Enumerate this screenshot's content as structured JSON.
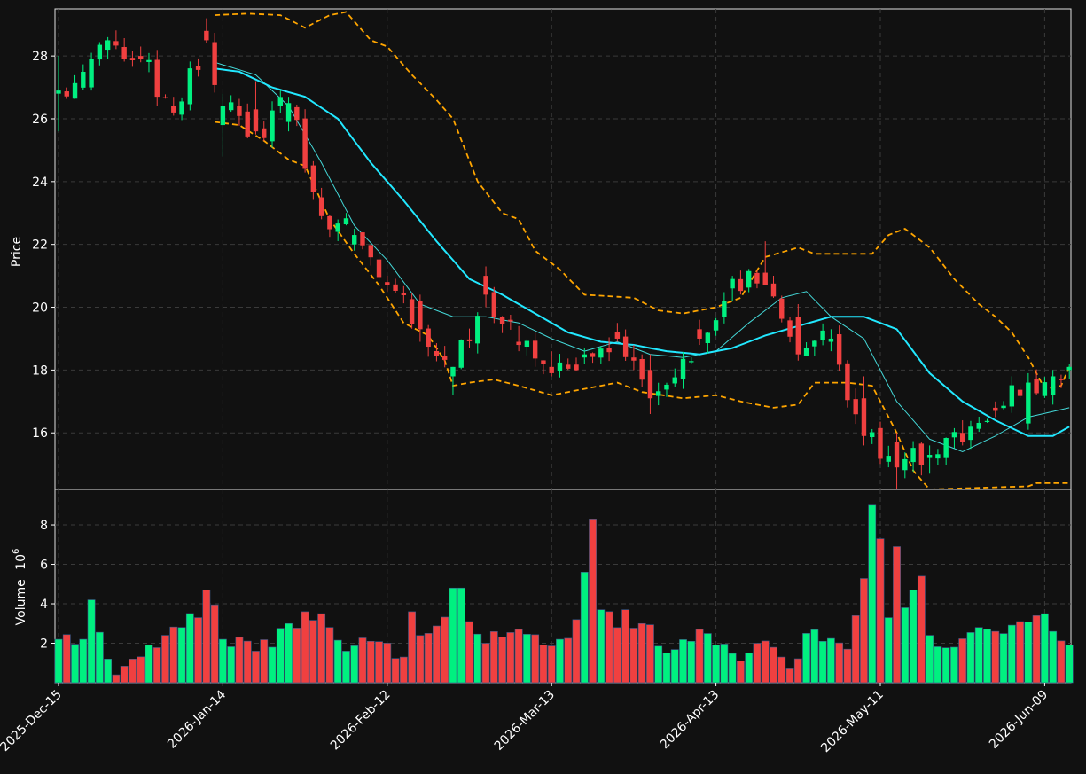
{
  "chart_data": {
    "type": "candlestick",
    "price_panel": {
      "ylabel": "Price",
      "ylim": [
        14.2,
        29.5
      ],
      "yticks": [
        16,
        18,
        20,
        22,
        24,
        26,
        28
      ]
    },
    "volume_panel": {
      "ylabel": "Volume",
      "exponent_label": "10^6",
      "ylim": [
        0,
        9.8
      ],
      "yticks": [
        2,
        4,
        6,
        8
      ]
    },
    "x_tick_labels": [
      "2025-Dec-15",
      "2026-Jan-14",
      "2026-Feb-12",
      "2026-Mar-13",
      "2026-Apr-13",
      "2026-May-11",
      "2026-Jun-09"
    ],
    "x_tick_index": [
      0,
      20,
      40,
      60,
      80,
      100,
      120
    ],
    "num_bars": 124,
    "ohlc_key": [
      [
        0,
        26.8,
        28.0,
        25.6,
        26.9
      ],
      [
        4,
        27.0,
        28.1,
        26.9,
        27.9
      ],
      [
        6,
        28.2,
        28.6,
        27.9,
        28.5
      ],
      [
        10,
        28.0,
        28.3,
        27.8,
        27.9
      ],
      [
        14,
        26.4,
        26.7,
        26.1,
        26.2
      ],
      [
        18,
        28.8,
        29.2,
        28.4,
        28.5
      ],
      [
        20,
        25.8,
        26.8,
        24.8,
        26.4
      ],
      [
        24,
        26.3,
        27.2,
        25.5,
        25.6
      ],
      [
        28,
        25.9,
        26.7,
        25.6,
        26.5
      ],
      [
        32,
        23.5,
        23.8,
        22.8,
        22.9
      ],
      [
        36,
        22.0,
        22.5,
        21.8,
        22.3
      ],
      [
        40,
        20.8,
        21.0,
        20.5,
        20.7
      ],
      [
        44,
        20.2,
        20.4,
        18.9,
        19.3
      ],
      [
        48,
        17.8,
        18.1,
        17.2,
        18.1
      ],
      [
        52,
        21.0,
        21.3,
        20.0,
        20.4
      ],
      [
        56,
        18.9,
        19.4,
        18.6,
        18.8
      ],
      [
        60,
        18.1,
        18.6,
        17.8,
        17.9
      ],
      [
        64,
        18.4,
        18.7,
        18.2,
        18.5
      ],
      [
        68,
        19.2,
        19.5,
        18.9,
        19.0
      ],
      [
        70,
        18.4,
        18.8,
        18.0,
        18.3
      ],
      [
        72,
        18.0,
        18.5,
        16.6,
        17.1
      ],
      [
        78,
        19.3,
        19.6,
        18.8,
        19.0
      ],
      [
        82,
        20.6,
        21.0,
        20.2,
        20.9
      ],
      [
        86,
        21.1,
        22.1,
        20.9,
        20.7
      ],
      [
        90,
        19.7,
        20.1,
        18.3,
        18.5
      ],
      [
        94,
        18.9,
        19.3,
        18.6,
        19.0
      ],
      [
        98,
        17.1,
        17.8,
        15.6,
        15.9
      ],
      [
        102,
        15.7,
        16.0,
        14.2,
        14.9
      ],
      [
        106,
        15.2,
        15.6,
        14.7,
        15.3
      ],
      [
        110,
        16.0,
        16.4,
        15.6,
        15.7
      ],
      [
        114,
        16.8,
        17.0,
        16.5,
        16.7
      ],
      [
        118,
        16.3,
        17.9,
        16.1,
        17.6
      ],
      [
        121,
        17.2,
        18.0,
        16.9,
        17.8
      ],
      [
        123,
        18.0,
        18.2,
        17.7,
        18.1
      ]
    ],
    "sma_fast_key": [
      [
        19,
        27.8
      ],
      [
        24,
        27.4
      ],
      [
        28,
        26.4
      ],
      [
        32,
        24.6
      ],
      [
        36,
        22.6
      ],
      [
        40,
        21.5
      ],
      [
        44,
        20.1
      ],
      [
        48,
        19.7
      ],
      [
        52,
        19.7
      ],
      [
        56,
        19.5
      ],
      [
        60,
        19.0
      ],
      [
        64,
        18.6
      ],
      [
        68,
        18.9
      ],
      [
        72,
        18.5
      ],
      [
        76,
        18.4
      ],
      [
        80,
        18.6
      ],
      [
        84,
        19.5
      ],
      [
        88,
        20.3
      ],
      [
        91,
        20.5
      ],
      [
        94,
        19.7
      ],
      [
        98,
        19.0
      ],
      [
        102,
        17.0
      ],
      [
        106,
        15.8
      ],
      [
        110,
        15.4
      ],
      [
        114,
        15.9
      ],
      [
        118,
        16.5
      ],
      [
        123,
        16.8
      ]
    ],
    "sma_slow_key": [
      [
        19,
        27.6
      ],
      [
        22,
        27.5
      ],
      [
        26,
        27.0
      ],
      [
        30,
        26.7
      ],
      [
        34,
        26.0
      ],
      [
        38,
        24.6
      ],
      [
        42,
        23.4
      ],
      [
        46,
        22.1
      ],
      [
        50,
        20.9
      ],
      [
        54,
        20.4
      ],
      [
        58,
        19.8
      ],
      [
        62,
        19.2
      ],
      [
        66,
        18.9
      ],
      [
        70,
        18.8
      ],
      [
        74,
        18.6
      ],
      [
        78,
        18.5
      ],
      [
        82,
        18.7
      ],
      [
        86,
        19.1
      ],
      [
        90,
        19.4
      ],
      [
        94,
        19.7
      ],
      [
        98,
        19.7
      ],
      [
        102,
        19.3
      ],
      [
        106,
        17.9
      ],
      [
        110,
        17.0
      ],
      [
        114,
        16.4
      ],
      [
        118,
        15.9
      ],
      [
        121,
        15.9
      ],
      [
        123,
        16.2
      ]
    ],
    "bb_upper_key": [
      [
        19,
        29.3
      ],
      [
        23,
        29.35
      ],
      [
        27,
        29.3
      ],
      [
        30,
        28.9
      ],
      [
        33,
        29.3
      ],
      [
        35,
        29.4
      ],
      [
        38,
        28.5
      ],
      [
        40,
        28.3
      ],
      [
        43,
        27.4
      ],
      [
        46,
        26.6
      ],
      [
        48,
        26.0
      ],
      [
        51,
        24.0
      ],
      [
        54,
        23.0
      ],
      [
        56,
        22.8
      ],
      [
        58,
        21.8
      ],
      [
        61,
        21.2
      ],
      [
        64,
        20.4
      ],
      [
        70,
        20.3
      ],
      [
        73,
        19.9
      ],
      [
        76,
        19.8
      ],
      [
        80,
        20.0
      ],
      [
        83,
        20.3
      ],
      [
        86,
        21.6
      ],
      [
        90,
        21.9
      ],
      [
        92,
        21.7
      ],
      [
        96,
        21.7
      ],
      [
        99,
        21.7
      ],
      [
        101,
        22.3
      ],
      [
        103,
        22.5
      ],
      [
        106,
        21.9
      ],
      [
        109,
        20.9
      ],
      [
        112,
        20.1
      ],
      [
        114,
        19.7
      ],
      [
        116,
        19.2
      ],
      [
        118,
        18.4
      ],
      [
        120,
        17.4
      ],
      [
        122,
        17.5
      ],
      [
        123,
        18.1
      ]
    ],
    "bb_lower_key": [
      [
        19,
        25.9
      ],
      [
        22,
        25.8
      ],
      [
        25,
        25.3
      ],
      [
        28,
        24.7
      ],
      [
        30,
        24.5
      ],
      [
        33,
        22.8
      ],
      [
        36,
        21.7
      ],
      [
        39,
        20.7
      ],
      [
        42,
        19.5
      ],
      [
        45,
        19.1
      ],
      [
        47,
        18.3
      ],
      [
        48,
        17.5
      ],
      [
        50,
        17.6
      ],
      [
        53,
        17.7
      ],
      [
        56,
        17.5
      ],
      [
        60,
        17.2
      ],
      [
        64,
        17.4
      ],
      [
        68,
        17.6
      ],
      [
        71,
        17.3
      ],
      [
        76,
        17.1
      ],
      [
        80,
        17.2
      ],
      [
        83,
        17.0
      ],
      [
        87,
        16.8
      ],
      [
        90,
        16.9
      ],
      [
        92,
        17.6
      ],
      [
        96,
        17.6
      ],
      [
        99,
        17.5
      ],
      [
        102,
        16.0
      ],
      [
        104,
        14.8
      ],
      [
        106,
        14.2
      ],
      [
        118,
        14.3
      ],
      [
        119,
        14.4
      ],
      [
        123,
        14.4
      ]
    ],
    "volume_key": [
      [
        0,
        2.2
      ],
      [
        3,
        2.2
      ],
      [
        4,
        4.2
      ],
      [
        6,
        1.2
      ],
      [
        7,
        0.4
      ],
      [
        9,
        1.2
      ],
      [
        13,
        2.4
      ],
      [
        15,
        2.8
      ],
      [
        17,
        3.3
      ],
      [
        18,
        4.7
      ],
      [
        20,
        2.2
      ],
      [
        22,
        2.3
      ],
      [
        26,
        1.8
      ],
      [
        28,
        3.0
      ],
      [
        30,
        3.6
      ],
      [
        32,
        3.5
      ],
      [
        33,
        2.8
      ],
      [
        35,
        1.6
      ],
      [
        38,
        2.1
      ],
      [
        42,
        1.3
      ],
      [
        43,
        3.6
      ],
      [
        45,
        2.5
      ],
      [
        49,
        4.8
      ],
      [
        50,
        3.1
      ],
      [
        52,
        2.0
      ],
      [
        56,
        2.7
      ],
      [
        61,
        2.2
      ],
      [
        63,
        3.2
      ],
      [
        65,
        8.3
      ],
      [
        66,
        3.7
      ],
      [
        69,
        3.7
      ],
      [
        71,
        3.0
      ],
      [
        74,
        1.5
      ],
      [
        77,
        2.1
      ],
      [
        78,
        2.7
      ],
      [
        80,
        1.9
      ],
      [
        83,
        1.1
      ],
      [
        85,
        2.0
      ],
      [
        88,
        1.3
      ],
      [
        89,
        0.7
      ],
      [
        91,
        2.5
      ],
      [
        93,
        2.1
      ],
      [
        96,
        1.7
      ],
      [
        97,
        3.4
      ],
      [
        99,
        9.0
      ],
      [
        101,
        3.3
      ],
      [
        102,
        6.9
      ],
      [
        103,
        3.8
      ],
      [
        104,
        4.7
      ],
      [
        105,
        5.4
      ],
      [
        106,
        2.4
      ],
      [
        109,
        1.8
      ],
      [
        112,
        2.8
      ],
      [
        114,
        2.6
      ],
      [
        117,
        3.1
      ],
      [
        119,
        3.4
      ],
      [
        120,
        3.5
      ],
      [
        121,
        2.6
      ],
      [
        123,
        1.9
      ]
    ]
  },
  "colors": {
    "background": "#111111",
    "up": "#00f080",
    "down": "#f04040",
    "sma_fast": "#44d8d8",
    "sma_slow": "#22e8ff",
    "bollinger": "#ffa500",
    "grid": "#3a3a3a",
    "axis": "#ffffff"
  }
}
